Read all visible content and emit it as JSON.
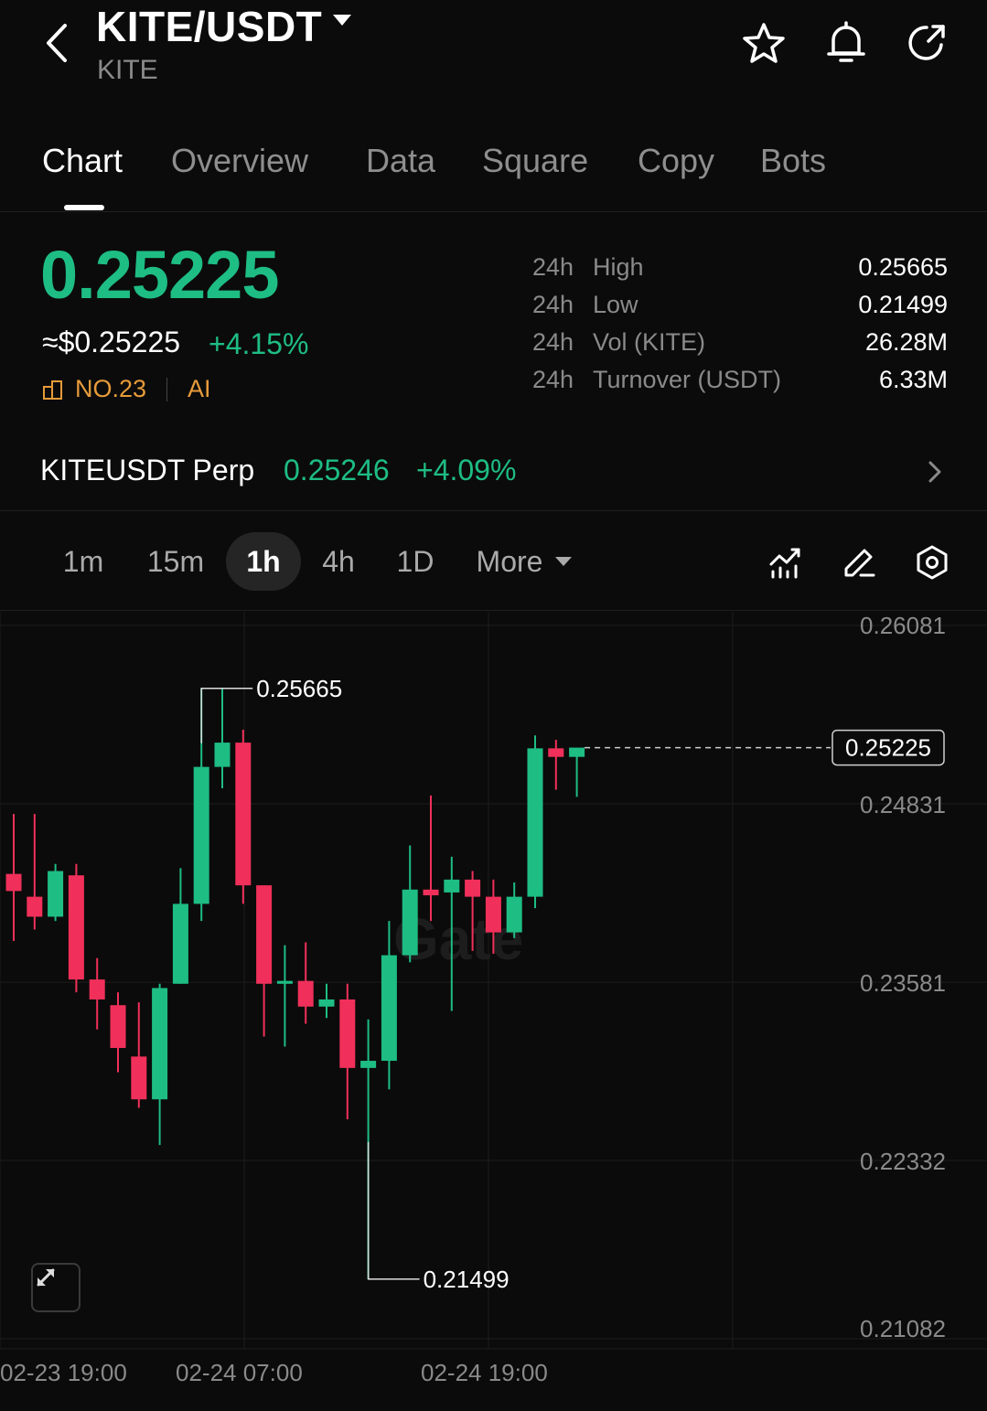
{
  "header": {
    "pair": "KITE/USDT",
    "base": "KITE"
  },
  "tabs": [
    {
      "label": "Chart",
      "active": true
    },
    {
      "label": "Overview",
      "active": false
    },
    {
      "label": "Data",
      "active": false
    },
    {
      "label": "Square",
      "active": false
    },
    {
      "label": "Copy",
      "active": false
    },
    {
      "label": "Bots",
      "active": false
    }
  ],
  "ticker": {
    "price": "0.25225",
    "usd_price": "≈$0.25225",
    "change": "+4.15%",
    "rank": "NO.23",
    "tag": "AI",
    "stats": [
      {
        "period": "24h",
        "label": "High",
        "value": "0.25665"
      },
      {
        "period": "24h",
        "label": "Low",
        "value": "0.21499"
      },
      {
        "period": "24h",
        "label": "Vol (KITE)",
        "value": "26.28M"
      },
      {
        "period": "24h",
        "label": "Turnover (USDT)",
        "value": "6.33M"
      }
    ]
  },
  "perp": {
    "name": "KITEUSDT Perp",
    "price": "0.25246",
    "change": "+4.09%"
  },
  "intervals": {
    "items": [
      "1m",
      "15m",
      "1h",
      "4h",
      "1D"
    ],
    "active": "1h",
    "more_label": "More"
  },
  "colors": {
    "up": "#1ebd84",
    "down": "#f0305a",
    "accent_orange": "#e69b3a",
    "grid": "#1c1c1c"
  },
  "chart_data": {
    "type": "candlestick",
    "interval": "1h",
    "ylim": [
      0.21082,
      0.26081
    ],
    "y_ticks": [
      "0.26081",
      "0.24831",
      "0.23581",
      "0.22332",
      "0.21082"
    ],
    "x_ticks": [
      "02-23 19:00",
      "02-24 07:00",
      "02-24 19:00"
    ],
    "high_marker": "0.25665",
    "low_marker": "0.21499",
    "last_price_label": "0.25225",
    "last_price": 0.25225,
    "watermark": "Gate",
    "candles": [
      {
        "o": 0.2434,
        "h": 0.2476,
        "l": 0.2387,
        "c": 0.2422
      },
      {
        "o": 0.2418,
        "h": 0.2476,
        "l": 0.2395,
        "c": 0.2404
      },
      {
        "o": 0.2404,
        "h": 0.2441,
        "l": 0.2401,
        "c": 0.2436
      },
      {
        "o": 0.2433,
        "h": 0.2441,
        "l": 0.2351,
        "c": 0.236
      },
      {
        "o": 0.236,
        "h": 0.2375,
        "l": 0.2325,
        "c": 0.2346
      },
      {
        "o": 0.2342,
        "h": 0.2351,
        "l": 0.2295,
        "c": 0.2312
      },
      {
        "o": 0.2306,
        "h": 0.2344,
        "l": 0.227,
        "c": 0.2276
      },
      {
        "o": 0.2276,
        "h": 0.2357,
        "l": 0.2244,
        "c": 0.2354
      },
      {
        "o": 0.2357,
        "h": 0.2438,
        "l": 0.2357,
        "c": 0.2413
      },
      {
        "o": 0.2413,
        "h": 0.2564,
        "l": 0.2401,
        "c": 0.2509
      },
      {
        "o": 0.2509,
        "h": 0.2564,
        "l": 0.2494,
        "c": 0.2526
      },
      {
        "o": 0.2526,
        "h": 0.2535,
        "l": 0.2413,
        "c": 0.2426
      },
      {
        "o": 0.2426,
        "h": 0.2426,
        "l": 0.232,
        "c": 0.2357
      },
      {
        "o": 0.2357,
        "h": 0.2384,
        "l": 0.2313,
        "c": 0.2359
      },
      {
        "o": 0.2359,
        "h": 0.2386,
        "l": 0.2329,
        "c": 0.2341
      },
      {
        "o": 0.2341,
        "h": 0.2357,
        "l": 0.2333,
        "c": 0.2346
      },
      {
        "o": 0.2346,
        "h": 0.2357,
        "l": 0.2262,
        "c": 0.2298
      },
      {
        "o": 0.2298,
        "h": 0.2332,
        "l": 0.215,
        "c": 0.2303
      },
      {
        "o": 0.2303,
        "h": 0.2401,
        "l": 0.2283,
        "c": 0.2377
      },
      {
        "o": 0.2377,
        "h": 0.2454,
        "l": 0.2372,
        "c": 0.2423
      },
      {
        "o": 0.2423,
        "h": 0.2489,
        "l": 0.2401,
        "c": 0.2419
      },
      {
        "o": 0.2421,
        "h": 0.2446,
        "l": 0.2338,
        "c": 0.243
      },
      {
        "o": 0.243,
        "h": 0.2436,
        "l": 0.238,
        "c": 0.2418
      },
      {
        "o": 0.2418,
        "h": 0.243,
        "l": 0.2378,
        "c": 0.2393
      },
      {
        "o": 0.2393,
        "h": 0.2428,
        "l": 0.2389,
        "c": 0.2418
      },
      {
        "o": 0.2418,
        "h": 0.2531,
        "l": 0.241,
        "c": 0.2522
      },
      {
        "o": 0.2522,
        "h": 0.2528,
        "l": 0.2493,
        "c": 0.2516
      },
      {
        "o": 0.2516,
        "h": 0.2518,
        "l": 0.2488,
        "c": 0.25225
      }
    ]
  }
}
